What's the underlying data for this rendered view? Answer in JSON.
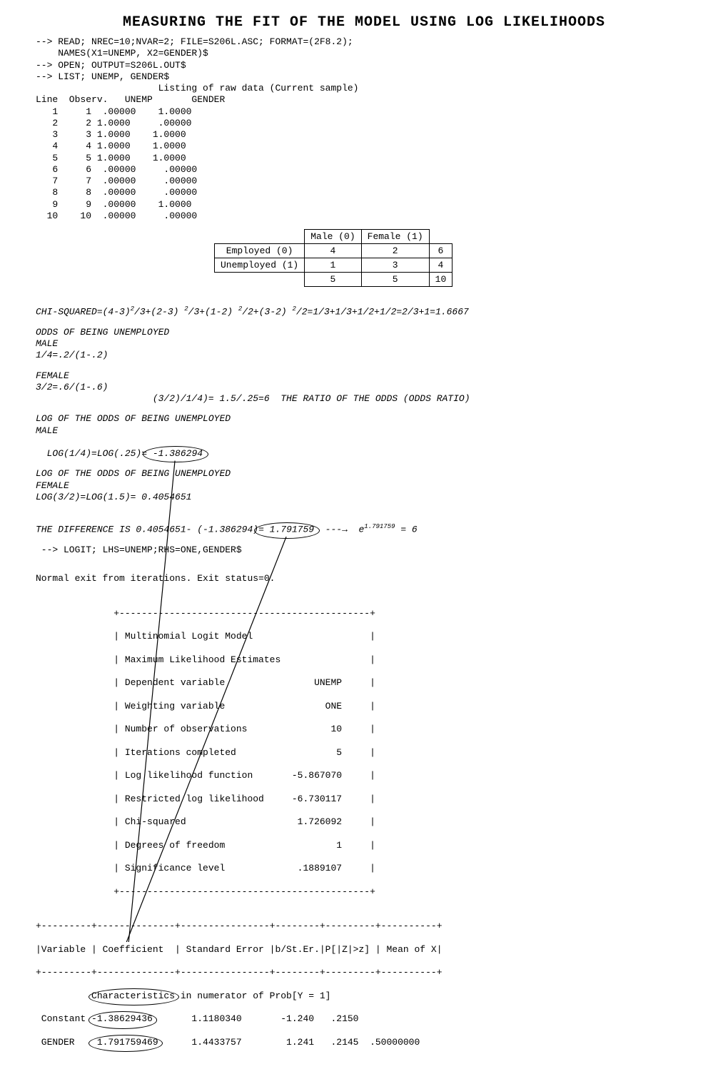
{
  "title": "MEASURING THE FIT OF THE MODEL USING LOG LIKELIHOODS",
  "commands": {
    "read": "--> READ; NREC=10;NVAR=2; FILE=S206L.ASC; FORMAT=(2F8.2);",
    "names": "    NAMES(X1=UNEMP, X2=GENDER)$",
    "open": "--> OPEN; OUTPUT=S206L.OUT$",
    "list": "--> LIST; UNEMP, GENDER$"
  },
  "listing_header": "                      Listing of raw data (Current sample)",
  "listing_cols": "Line  Observ.   UNEMP       GENDER",
  "rows": [
    {
      "line": "   1",
      "obs": "     1",
      "unemp": "  .00000",
      "gender": "    1.0000"
    },
    {
      "line": "   2",
      "obs": "     2",
      "unemp": " 1.0000",
      "gender": "     .00000"
    },
    {
      "line": "   3",
      "obs": "     3",
      "unemp": " 1.0000",
      "gender": "    1.0000"
    },
    {
      "line": "   4",
      "obs": "     4",
      "unemp": " 1.0000",
      "gender": "    1.0000"
    },
    {
      "line": "   5",
      "obs": "     5",
      "unemp": " 1.0000",
      "gender": "    1.0000"
    },
    {
      "line": "   6",
      "obs": "     6",
      "unemp": "  .00000",
      "gender": "     .00000"
    },
    {
      "line": "   7",
      "obs": "     7",
      "unemp": "  .00000",
      "gender": "     .00000"
    },
    {
      "line": "   8",
      "obs": "     8",
      "unemp": "  .00000",
      "gender": "     .00000"
    },
    {
      "line": "   9",
      "obs": "     9",
      "unemp": "  .00000",
      "gender": "    1.0000"
    },
    {
      "line": "  10",
      "obs": "    10",
      "unemp": "  .00000",
      "gender": "     .00000"
    }
  ],
  "crosstab": {
    "male_label": "Male (0)",
    "female_label": "Female (1)",
    "employed_label": "Employed (0)",
    "unemployed_label": "Unemployed (1)",
    "employed_male": "4",
    "employed_female": "2",
    "employed_total": "6",
    "unemployed_male": "1",
    "unemployed_female": "3",
    "unemployed_total": "4",
    "total_male": "5",
    "total_female": "5",
    "total_total": "10"
  },
  "chi_squared_prefix": "CHI-SQUARED=(4-3)",
  "chi_squared_mid1": "/3+(2-3)",
  "chi_squared_mid2": "/3+(1-2)",
  "chi_squared_mid3": "/2+(3-2)",
  "chi_squared_suffix": "/2=1/3+1/3+1/2+1/2=2/3+1=1.6667",
  "odds": {
    "header": "ODDS OF BEING UNEMPLOYED",
    "male": "MALE",
    "male_calc": "1/4=.2/(1-.2)",
    "female": "FEMALE",
    "female_calc": "3/2=.6/(1-.6)",
    "ratio": "                     (3/2)/1/4)= 1.5/.25=6  THE RATIO OF THE ODDS (ODDS RATIO)"
  },
  "logodds": {
    "header1": "LOG OF THE ODDS OF BEING UNEMPLOYED",
    "male": "MALE",
    "male_calc_prefix": "LOG(1/4)=LOG(.25)=",
    "male_calc_value": " -1.386294",
    "header2": "LOG OF THE ODDS OF BEING UNEMPLOYED",
    "female": "FEMALE",
    "female_calc": "LOG(3/2)=LOG(1.5)= 0.4054651"
  },
  "diff": {
    "prefix": "THE DIFFERENCE IS 0.4054651- (-1.386294)",
    "value": "= 1.791759",
    "arrow_prefix": "  ---→  e",
    "exponent": "1.791759",
    "suffix": " = 6"
  },
  "logit_cmd": " --> LOGIT; LHS=UNEMP;RHS=ONE,GENDER$",
  "exit_msg": "Normal exit from iterations. Exit status=0.",
  "box": {
    "top": "              +---------------------------------------------+",
    "l1": "              | Multinomial Logit Model                     |",
    "l2": "              | Maximum Likelihood Estimates                |",
    "l3": "              | Dependent variable                UNEMP     |",
    "l4": "              | Weighting variable                  ONE     |",
    "l5": "              | Number of observations               10     |",
    "l6": "              | Iterations completed                  5     |",
    "l7": "              | Log likelihood function       -5.867070     |",
    "l8": "              | Restricted log likelihood     -6.730117     |",
    "l9": "              | Chi-squared                    1.726092     |",
    "l10": "              | Degrees of freedom                    1     |",
    "l11": "              | Significance level             .1889107     |",
    "bot": "              +---------------------------------------------+"
  },
  "results": {
    "sep1": "+---------+--------------+----------------+--------+---------+----------+",
    "header": "|Variable | Coefficient  | Standard Error |b/St.Er.|P[|Z|>z] | Mean of X|",
    "sep2": "+---------+--------------+----------------+--------+---------+----------+",
    "charline": "          Characteristics in numerator of Prob[Y = 1]",
    "constant": " Constant -1.38629436       1.1180340       -1.240   .2150",
    "gender": " GENDER    1.791759469      1.4433757        1.241   .2145  .50000000"
  }
}
